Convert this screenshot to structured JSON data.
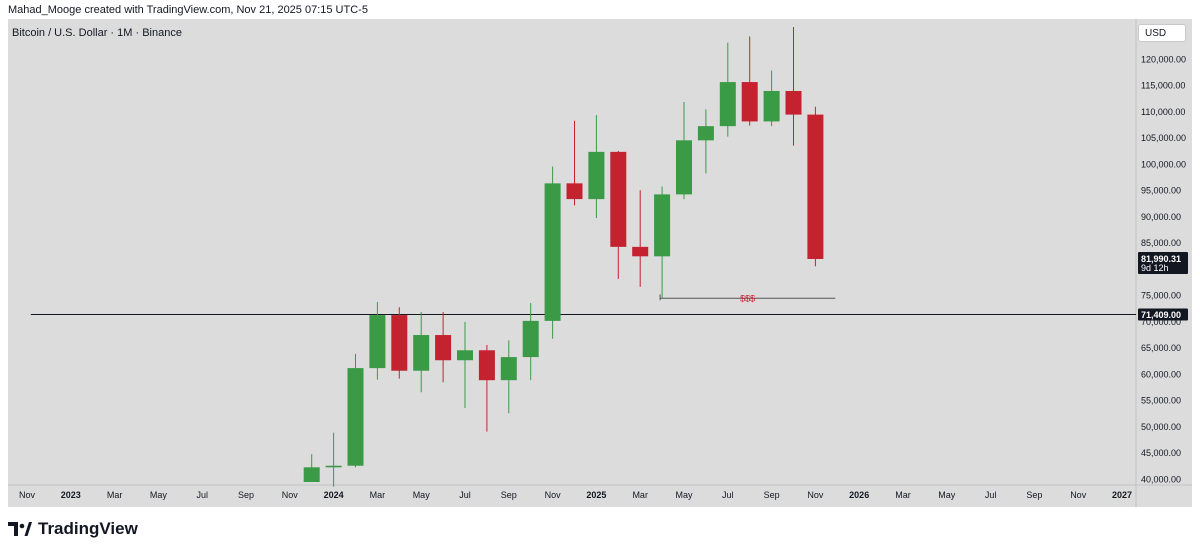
{
  "header": {
    "credit": "Mahad_Mooge created with TradingView.com, Nov 21, 2025 07:15 UTC-5",
    "symbol_title": "Bitcoin / U.S. Dollar · 1M · Binance",
    "currency": "USD"
  },
  "footer": {
    "brand": "TradingView"
  },
  "colors": {
    "up": "#3a9a46",
    "down": "#c4222f",
    "background": "#dcdcdc",
    "annotation": "#c4222f"
  },
  "chart_data": {
    "type": "candlestick",
    "symbol": "BTC/USD",
    "interval": "1M",
    "exchange": "Binance",
    "ylim": [
      39500,
      126000
    ],
    "y_ticks": [
      {
        "value": 40000,
        "label": "40,000.00"
      },
      {
        "value": 45000,
        "label": "45,000.00"
      },
      {
        "value": 50000,
        "label": "50,000.00"
      },
      {
        "value": 55000,
        "label": "55,000.00"
      },
      {
        "value": 60000,
        "label": "60,000.00"
      },
      {
        "value": 65000,
        "label": "65,000.00"
      },
      {
        "value": 70000,
        "label": "70,000.00"
      },
      {
        "value": 75000,
        "label": "75,000.00"
      },
      {
        "value": 80000,
        "label": "80,000.00"
      },
      {
        "value": 85000,
        "label": "85,000.00"
      },
      {
        "value": 90000,
        "label": "90,000.00"
      },
      {
        "value": 95000,
        "label": "95,000.00"
      },
      {
        "value": 100000,
        "label": "100,000.00"
      },
      {
        "value": 105000,
        "label": "105,000.00"
      },
      {
        "value": 110000,
        "label": "110,000.00"
      },
      {
        "value": 115000,
        "label": "115,000.00"
      },
      {
        "value": 120000,
        "label": "120,000.00"
      }
    ],
    "x_ticks": [
      {
        "month": "2022-11",
        "label": "Nov",
        "bold": false
      },
      {
        "month": "2023-01",
        "label": "2023",
        "bold": true
      },
      {
        "month": "2023-03",
        "label": "Mar",
        "bold": false
      },
      {
        "month": "2023-05",
        "label": "May",
        "bold": false
      },
      {
        "month": "2023-07",
        "label": "Jul",
        "bold": false
      },
      {
        "month": "2023-09",
        "label": "Sep",
        "bold": false
      },
      {
        "month": "2023-11",
        "label": "Nov",
        "bold": false
      },
      {
        "month": "2024-01",
        "label": "2024",
        "bold": true
      },
      {
        "month": "2024-03",
        "label": "Mar",
        "bold": false
      },
      {
        "month": "2024-05",
        "label": "May",
        "bold": false
      },
      {
        "month": "2024-07",
        "label": "Jul",
        "bold": false
      },
      {
        "month": "2024-09",
        "label": "Sep",
        "bold": false
      },
      {
        "month": "2024-11",
        "label": "Nov",
        "bold": false
      },
      {
        "month": "2025-01",
        "label": "2025",
        "bold": true
      },
      {
        "month": "2025-03",
        "label": "Mar",
        "bold": false
      },
      {
        "month": "2025-05",
        "label": "May",
        "bold": false
      },
      {
        "month": "2025-07",
        "label": "Jul",
        "bold": false
      },
      {
        "month": "2025-09",
        "label": "Sep",
        "bold": false
      },
      {
        "month": "2025-11",
        "label": "Nov",
        "bold": false
      },
      {
        "month": "2026-01",
        "label": "2026",
        "bold": true
      },
      {
        "month": "2026-03",
        "label": "Mar",
        "bold": false
      },
      {
        "month": "2026-05",
        "label": "May",
        "bold": false
      },
      {
        "month": "2026-07",
        "label": "Jul",
        "bold": false
      },
      {
        "month": "2026-09",
        "label": "Sep",
        "bold": false
      },
      {
        "month": "2026-11",
        "label": "Nov",
        "bold": false
      },
      {
        "month": "2027-01",
        "label": "2027",
        "bold": true
      }
    ],
    "candles": [
      {
        "month": "2023-12",
        "open": 39500,
        "high": 44800,
        "low": 39500,
        "close": 42300
      },
      {
        "month": "2024-01",
        "open": 42300,
        "high": 48900,
        "low": 38600,
        "close": 42600
      },
      {
        "month": "2024-02",
        "open": 42600,
        "high": 63900,
        "low": 42300,
        "close": 61200
      },
      {
        "month": "2024-03",
        "open": 61200,
        "high": 73800,
        "low": 59000,
        "close": 71300
      },
      {
        "month": "2024-04",
        "open": 71300,
        "high": 72800,
        "low": 59200,
        "close": 60700
      },
      {
        "month": "2024-05",
        "open": 60700,
        "high": 71900,
        "low": 56600,
        "close": 67500
      },
      {
        "month": "2024-06",
        "open": 67500,
        "high": 71900,
        "low": 58500,
        "close": 62700
      },
      {
        "month": "2024-07",
        "open": 62700,
        "high": 70000,
        "low": 53600,
        "close": 64600
      },
      {
        "month": "2024-08",
        "open": 64600,
        "high": 65600,
        "low": 49100,
        "close": 58900
      },
      {
        "month": "2024-09",
        "open": 58900,
        "high": 66500,
        "low": 52600,
        "close": 63300
      },
      {
        "month": "2024-10",
        "open": 63300,
        "high": 73600,
        "low": 58900,
        "close": 70200
      },
      {
        "month": "2024-11",
        "open": 70200,
        "high": 99600,
        "low": 66800,
        "close": 96400
      },
      {
        "month": "2024-12",
        "open": 96400,
        "high": 108300,
        "low": 92200,
        "close": 93400
      },
      {
        "month": "2025-01",
        "open": 93400,
        "high": 109400,
        "low": 89800,
        "close": 102400
      },
      {
        "month": "2025-02",
        "open": 102400,
        "high": 102600,
        "low": 78200,
        "close": 84300
      },
      {
        "month": "2025-03",
        "open": 84300,
        "high": 95100,
        "low": 76700,
        "close": 82500
      },
      {
        "month": "2025-04",
        "open": 82500,
        "high": 95800,
        "low": 74500,
        "close": 94300
      },
      {
        "month": "2025-05",
        "open": 94300,
        "high": 111900,
        "low": 93400,
        "close": 104600
      },
      {
        "month": "2025-06",
        "open": 104600,
        "high": 110500,
        "low": 98300,
        "close": 107300
      },
      {
        "month": "2025-07",
        "open": 107300,
        "high": 123200,
        "low": 105300,
        "close": 115700
      },
      {
        "month": "2025-08",
        "open": 115700,
        "high": 124400,
        "low": 107400,
        "close": 108200
      },
      {
        "month": "2025-09",
        "open": 108200,
        "high": 117900,
        "low": 107300,
        "close": 114000
      },
      {
        "month": "2025-10",
        "open": 114000,
        "high": 126200,
        "low": 103600,
        "close": 109500
      },
      {
        "month": "2025-11",
        "open": 109500,
        "high": 111000,
        "low": 80600,
        "close": 81990.31
      }
    ],
    "annotations": [
      {
        "type": "hline",
        "value": 71409,
        "start_month": "2023-01",
        "label": "71,409.00"
      },
      {
        "type": "hline",
        "value": 74500,
        "start_month": "2025-04",
        "end_month": "2025-12",
        "text": "$$$"
      }
    ],
    "last_price": {
      "value": 81990.31,
      "label": "81,990.31",
      "countdown": "9d 12h"
    }
  }
}
